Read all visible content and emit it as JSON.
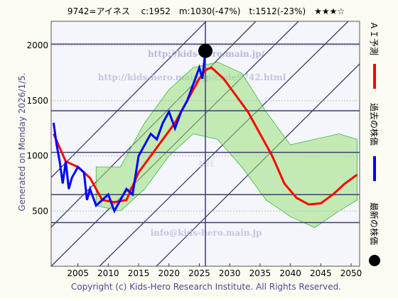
{
  "chart_data": {
    "type": "line",
    "title": "9742=アイネス　 c:1952　m:1030(-47%)　t:1512(-23%)　★★★☆",
    "side_label": "Generated on Monday 2026/1/5.",
    "copyright": "Copyright (c) Kids-Hero Research Institute. All Rights Reserved.",
    "watermarks": [
      "http://kids-hero.main.jp/",
      "http://kids-hero.main.jp/code9742.html",
      "info@kids-hero.main.jp",
      "KH"
    ],
    "xlim": [
      2000.6,
      2051.4
    ],
    "ylim": [
      0,
      2220
    ],
    "xticks": [
      2005,
      2010,
      2015,
      2020,
      2025,
      2030,
      2035,
      2040,
      2045,
      2050
    ],
    "yticks": [
      500,
      1000,
      1500,
      2000
    ],
    "levels": [
      2013,
      1409,
      1032,
      649,
      396
    ],
    "band": {
      "color": "#9be07a",
      "x": [
        2008,
        2012,
        2016,
        2020,
        2024,
        2028,
        2032,
        2036,
        2040,
        2044,
        2048,
        2051
      ],
      "upper": [
        900,
        900,
        1300,
        1600,
        1800,
        1850,
        1750,
        1400,
        1100,
        1150,
        1200,
        1150
      ],
      "lower": [
        550,
        500,
        700,
        1000,
        1200,
        1150,
        900,
        600,
        450,
        350,
        500,
        600
      ]
    },
    "series": [
      {
        "name": "ＡＩ予測",
        "color": "#ff0000",
        "x": [
          2001,
          2003,
          2005,
          2007,
          2009,
          2011,
          2013,
          2015,
          2017,
          2019,
          2021,
          2023,
          2025,
          2026,
          2027,
          2029,
          2031,
          2033,
          2035,
          2037,
          2039,
          2041,
          2043,
          2045,
          2047,
          2049,
          2051
        ],
        "values": [
          1200,
          950,
          900,
          800,
          600,
          580,
          600,
          850,
          1000,
          1150,
          1300,
          1500,
          1700,
          1780,
          1800,
          1700,
          1550,
          1400,
          1200,
          1000,
          750,
          620,
          560,
          570,
          650,
          750,
          830
        ]
      },
      {
        "name": "過去の株価",
        "color": "#0000ff",
        "x": [
          2001,
          2001.5,
          2002,
          2002.5,
          2003,
          2003.5,
          2004,
          2005,
          2006,
          2006.5,
          2007,
          2008,
          2009,
          2010,
          2011,
          2012,
          2013,
          2014,
          2015,
          2016,
          2017,
          2018,
          2019,
          2020,
          2021,
          2022,
          2023,
          2024,
          2025,
          2025.5,
          2026
        ],
        "values": [
          1300,
          1100,
          950,
          750,
          950,
          700,
          800,
          900,
          850,
          600,
          700,
          550,
          600,
          650,
          500,
          600,
          700,
          650,
          1000,
          1100,
          1200,
          1150,
          1300,
          1400,
          1250,
          1400,
          1500,
          1650,
          1800,
          1700,
          1952
        ]
      }
    ],
    "latest": {
      "name": "最新の株価",
      "color": "#000000",
      "x": 2026,
      "value": 1952
    }
  }
}
